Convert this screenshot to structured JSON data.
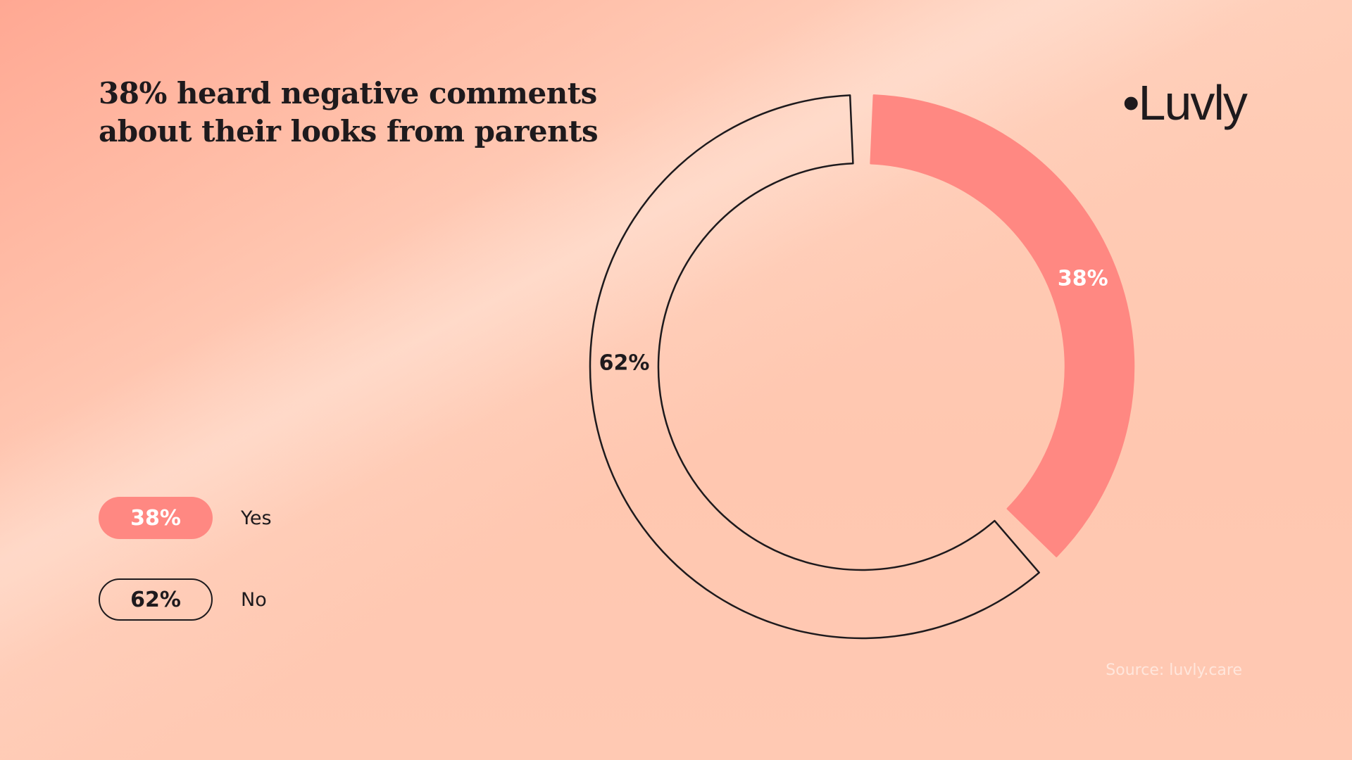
{
  "title": "38% heard negative comments about their looks from parents",
  "logo": "•Luvly",
  "source": "Source: luvly.care",
  "colors": {
    "yes": "#ff8882",
    "no_stroke": "#1e1a1d",
    "text": "#1e1a1d"
  },
  "legend": [
    {
      "value": "38%",
      "label": "Yes"
    },
    {
      "value": "62%",
      "label": "No"
    }
  ],
  "chart_data": {
    "type": "pie",
    "variant": "donut",
    "categories": [
      "Yes",
      "No"
    ],
    "values": [
      38,
      62
    ],
    "labels": [
      "38%",
      "62%"
    ],
    "title": "38% heard negative comments about their looks from parents"
  }
}
